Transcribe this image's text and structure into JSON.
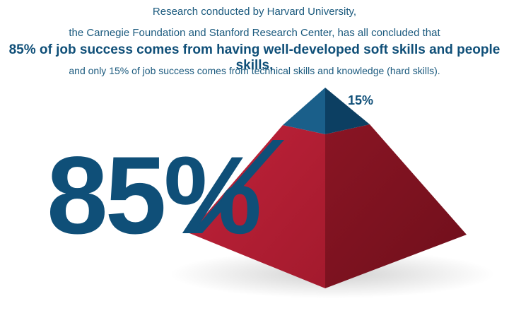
{
  "intro": {
    "line1": "Research conducted by Harvard University,",
    "line2": "the Carnegie Foundation and Stanford Research Center, has all concluded that",
    "line3": "85% of job success comes from having well-developed soft skills and people skills,",
    "line4": "and only 15% of job success comes from technical skills and knowledge (hard skills)."
  },
  "graphic": {
    "big_percent": "85%",
    "small_percent": "15%",
    "soft_skills_share": 85,
    "hard_skills_share": 15,
    "colors": {
      "navy": "#0f4f78",
      "red_light": "#b31d2e",
      "red_dark": "#8a1524",
      "red_mid": "#a01a2a",
      "navy_dark": "#0c3f62"
    }
  }
}
